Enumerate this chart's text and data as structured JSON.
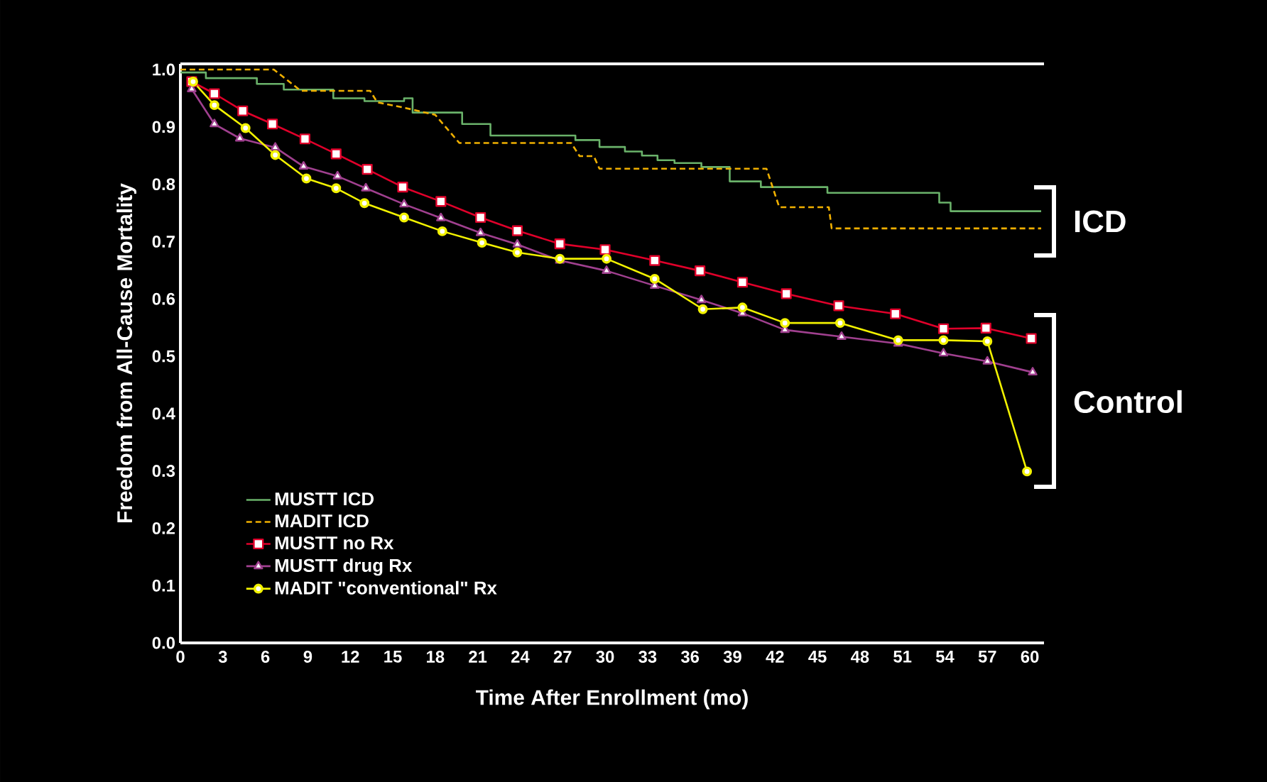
{
  "chart_data": {
    "type": "line",
    "xlabel": "Time After Enrollment (mo)",
    "ylabel": "Freedom from All-Cause Mortality",
    "xlim": [
      0,
      61
    ],
    "ylim": [
      0,
      1.01
    ],
    "xticks": [
      0,
      3,
      6,
      9,
      12,
      15,
      18,
      21,
      24,
      27,
      30,
      33,
      36,
      39,
      42,
      45,
      48,
      51,
      54,
      57,
      60
    ],
    "yticks": [
      {
        "value": 0,
        "label": "0.0"
      },
      {
        "value": 0.1,
        "label": "0.1"
      },
      {
        "value": 0.2,
        "label": "0.2"
      },
      {
        "value": 0.3,
        "label": "0.3"
      },
      {
        "value": 0.4,
        "label": "0.4"
      },
      {
        "value": 0.5,
        "label": "0.5"
      },
      {
        "value": 0.6,
        "label": "0.6"
      },
      {
        "value": 0.7,
        "label": "0.7"
      },
      {
        "value": 0.8,
        "label": "0.8"
      },
      {
        "value": 0.9,
        "label": "0.9"
      },
      {
        "value": 1.0,
        "label": "1.0"
      }
    ],
    "legend": "bottom left",
    "annotations": [
      "ICD",
      "Control"
    ],
    "series": [
      {
        "name": "MUSTT ICD",
        "type": "step",
        "color": "#6ab26a",
        "marker": "none",
        "line_style": "solid",
        "x": [
          0,
          1.8,
          5.4,
          7.3,
          10.8,
          13.0,
          15.8,
          16.4,
          19.9,
          21.9,
          27.9,
          29.6,
          31.4,
          32.6,
          33.7,
          34.9,
          36.8,
          38.8,
          41.0,
          45.7,
          53.6,
          54.4,
          60.8
        ],
        "values": [
          0.995,
          0.985,
          0.975,
          0.965,
          0.95,
          0.945,
          0.95,
          0.925,
          0.905,
          0.885,
          0.877,
          0.865,
          0.857,
          0.85,
          0.842,
          0.837,
          0.83,
          0.805,
          0.795,
          0.785,
          0.768,
          0.753,
          0.753
        ]
      },
      {
        "name": "MADIT ICD",
        "type": "line",
        "color": "#f0b000",
        "marker": "none",
        "line_style": "dashed",
        "x": [
          0,
          6.6,
          8.5,
          13.4,
          13.9,
          15.9,
          18.0,
          19.7,
          27.6,
          28.2,
          29.2,
          29.6,
          41.4,
          42.3,
          45.8,
          46.0,
          60.8
        ],
        "values": [
          1.0,
          1.0,
          0.963,
          0.963,
          0.943,
          0.933,
          0.921,
          0.872,
          0.872,
          0.849,
          0.849,
          0.827,
          0.827,
          0.76,
          0.76,
          0.723,
          0.723
        ]
      },
      {
        "name": "MUSTT no Rx",
        "color": "#e0002a",
        "marker": "square",
        "line_style": "solid",
        "x": [
          0.8,
          2.4,
          4.4,
          6.5,
          8.8,
          11.0,
          13.2,
          15.7,
          18.4,
          21.2,
          23.8,
          26.8,
          30.0,
          33.5,
          36.7,
          39.7,
          42.8,
          46.5,
          50.5,
          53.9,
          56.9,
          60.1
        ],
        "values": [
          0.979,
          0.958,
          0.928,
          0.905,
          0.879,
          0.853,
          0.826,
          0.795,
          0.77,
          0.742,
          0.719,
          0.696,
          0.686,
          0.667,
          0.649,
          0.629,
          0.609,
          0.588,
          0.574,
          0.548,
          0.549,
          0.531
        ]
      },
      {
        "name": "MUSTT drug Rx",
        "color": "#a0408f",
        "marker": "triangle",
        "line_style": "solid",
        "x": [
          0.8,
          2.4,
          4.2,
          6.7,
          8.7,
          11.1,
          13.1,
          15.8,
          18.4,
          21.2,
          23.8,
          26.8,
          30.1,
          33.5,
          36.8,
          39.7,
          42.7,
          46.7,
          50.7,
          53.9,
          57.0,
          60.2
        ],
        "values": [
          0.966,
          0.905,
          0.88,
          0.864,
          0.831,
          0.814,
          0.793,
          0.765,
          0.741,
          0.715,
          0.695,
          0.667,
          0.649,
          0.623,
          0.598,
          0.575,
          0.546,
          0.534,
          0.522,
          0.505,
          0.491,
          0.472
        ]
      },
      {
        "name": "MADIT \"conventional\" Rx",
        "color": "#f2f200",
        "marker": "circle",
        "line_style": "solid",
        "x": [
          0.9,
          2.4,
          4.6,
          6.7,
          8.9,
          11.0,
          13.0,
          15.8,
          18.5,
          21.3,
          23.8,
          26.8,
          30.1,
          33.5,
          36.9,
          39.7,
          42.7,
          46.6,
          50.7,
          53.9,
          57.0,
          59.8
        ],
        "values": [
          0.979,
          0.938,
          0.898,
          0.851,
          0.81,
          0.793,
          0.767,
          0.742,
          0.718,
          0.698,
          0.681,
          0.67,
          0.67,
          0.635,
          0.582,
          0.585,
          0.558,
          0.558,
          0.528,
          0.528,
          0.526,
          0.299
        ]
      }
    ]
  }
}
